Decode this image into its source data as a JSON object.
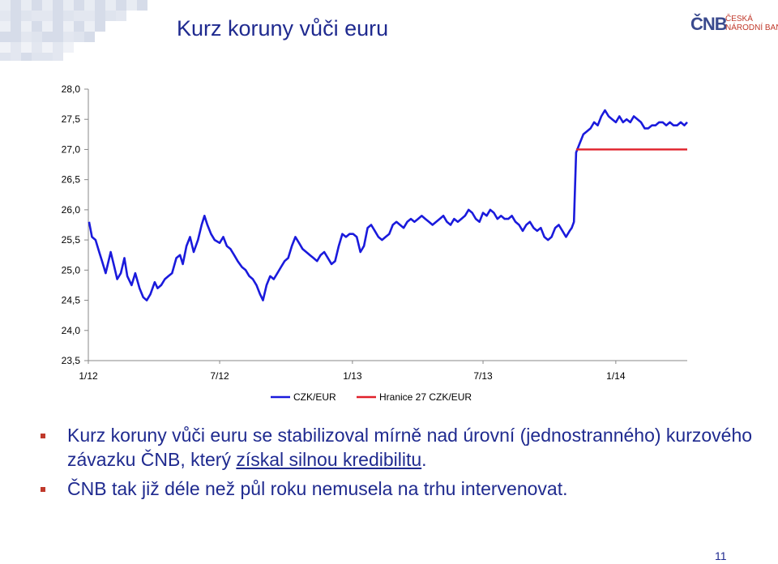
{
  "slide": {
    "title": "Kurz koruny vůči euru",
    "logo": {
      "mark": "ČNB",
      "line1": "ČESKÁ",
      "line2": "NÁRODNÍ BANKA"
    },
    "bullets": [
      {
        "before": "Kurz koruny vůči euru se stabilizoval mírně nad úrovní (jednostranného) kurzového závazku ČNB, který ",
        "underlined": "získal silnou kredibilitu",
        "after": "."
      },
      {
        "before": "ČNB tak již déle než půl roku nemusela na trhu intervenovat.",
        "underlined": "",
        "after": ""
      }
    ],
    "page_number": "11",
    "colors": {
      "title": "#1f2a8f",
      "bullet": "#c0392b",
      "series_czk": "#1a1adc",
      "series_limit": "#e0202a"
    }
  },
  "chart_data": {
    "type": "line",
    "title": "",
    "xlabel": "",
    "ylabel": "",
    "ylim": [
      23.5,
      28.0
    ],
    "yticks": [
      "28,0",
      "27,5",
      "27,0",
      "26,5",
      "26,0",
      "25,5",
      "25,0",
      "24,5",
      "24,0",
      "23,5"
    ],
    "ytick_values": [
      28.0,
      27.5,
      27.0,
      26.5,
      26.0,
      25.5,
      25.0,
      24.5,
      24.0,
      23.5
    ],
    "xticks": [
      "1/12",
      "7/12",
      "1/13",
      "7/13",
      "1/14"
    ],
    "xtick_values": [
      "2012-01",
      "2012-07",
      "2013-01",
      "2013-07",
      "2014-01"
    ],
    "x_range": [
      "2012-01",
      "2014-04"
    ],
    "grid": false,
    "legend_placement": "bottom-center",
    "series": [
      {
        "name": "CZK/EUR",
        "color": "#1a1adc",
        "points": [
          [
            "2012-01-02",
            25.8
          ],
          [
            "2012-01-06",
            25.55
          ],
          [
            "2012-01-11",
            25.5
          ],
          [
            "2012-01-16",
            25.3
          ],
          [
            "2012-01-20",
            25.15
          ],
          [
            "2012-01-25",
            24.95
          ],
          [
            "2012-02-01",
            25.3
          ],
          [
            "2012-02-06",
            25.05
          ],
          [
            "2012-02-10",
            24.85
          ],
          [
            "2012-02-15",
            24.95
          ],
          [
            "2012-02-20",
            25.2
          ],
          [
            "2012-02-24",
            24.9
          ],
          [
            "2012-03-01",
            24.75
          ],
          [
            "2012-03-06",
            24.95
          ],
          [
            "2012-03-12",
            24.7
          ],
          [
            "2012-03-17",
            24.55
          ],
          [
            "2012-03-22",
            24.5
          ],
          [
            "2012-03-27",
            24.6
          ],
          [
            "2012-04-02",
            24.8
          ],
          [
            "2012-04-06",
            24.7
          ],
          [
            "2012-04-11",
            24.75
          ],
          [
            "2012-04-16",
            24.85
          ],
          [
            "2012-04-21",
            24.9
          ],
          [
            "2012-04-26",
            24.95
          ],
          [
            "2012-05-02",
            25.2
          ],
          [
            "2012-05-07",
            25.25
          ],
          [
            "2012-05-11",
            25.1
          ],
          [
            "2012-05-16",
            25.4
          ],
          [
            "2012-05-21",
            25.55
          ],
          [
            "2012-05-26",
            25.3
          ],
          [
            "2012-06-01",
            25.5
          ],
          [
            "2012-06-06",
            25.75
          ],
          [
            "2012-06-10",
            25.9
          ],
          [
            "2012-06-14",
            25.75
          ],
          [
            "2012-06-19",
            25.6
          ],
          [
            "2012-06-24",
            25.5
          ],
          [
            "2012-07-01",
            25.45
          ],
          [
            "2012-07-06",
            25.55
          ],
          [
            "2012-07-11",
            25.4
          ],
          [
            "2012-07-16",
            25.35
          ],
          [
            "2012-07-21",
            25.25
          ],
          [
            "2012-07-26",
            25.15
          ],
          [
            "2012-08-01",
            25.05
          ],
          [
            "2012-08-06",
            25.0
          ],
          [
            "2012-08-11",
            24.9
          ],
          [
            "2012-08-16",
            24.85
          ],
          [
            "2012-08-21",
            24.75
          ],
          [
            "2012-08-26",
            24.6
          ],
          [
            "2012-08-30",
            24.5
          ],
          [
            "2012-09-04",
            24.75
          ],
          [
            "2012-09-09",
            24.9
          ],
          [
            "2012-09-14",
            24.85
          ],
          [
            "2012-09-19",
            24.95
          ],
          [
            "2012-09-24",
            25.05
          ],
          [
            "2012-09-29",
            25.15
          ],
          [
            "2012-10-04",
            25.2
          ],
          [
            "2012-10-09",
            25.4
          ],
          [
            "2012-10-14",
            25.55
          ],
          [
            "2012-10-19",
            25.45
          ],
          [
            "2012-10-24",
            25.35
          ],
          [
            "2012-10-29",
            25.3
          ],
          [
            "2012-11-03",
            25.25
          ],
          [
            "2012-11-08",
            25.2
          ],
          [
            "2012-11-13",
            25.15
          ],
          [
            "2012-11-18",
            25.25
          ],
          [
            "2012-11-23",
            25.3
          ],
          [
            "2012-11-28",
            25.2
          ],
          [
            "2012-12-03",
            25.1
          ],
          [
            "2012-12-08",
            25.15
          ],
          [
            "2012-12-13",
            25.4
          ],
          [
            "2012-12-18",
            25.6
          ],
          [
            "2012-12-23",
            25.55
          ],
          [
            "2012-12-28",
            25.6
          ],
          [
            "2013-01-02",
            25.6
          ],
          [
            "2013-01-07",
            25.55
          ],
          [
            "2013-01-12",
            25.3
          ],
          [
            "2013-01-17",
            25.4
          ],
          [
            "2013-01-22",
            25.7
          ],
          [
            "2013-01-27",
            25.75
          ],
          [
            "2013-02-01",
            25.65
          ],
          [
            "2013-02-06",
            25.55
          ],
          [
            "2013-02-11",
            25.5
          ],
          [
            "2013-02-16",
            25.55
          ],
          [
            "2013-02-21",
            25.6
          ],
          [
            "2013-02-26",
            25.75
          ],
          [
            "2013-03-03",
            25.8
          ],
          [
            "2013-03-08",
            25.75
          ],
          [
            "2013-03-13",
            25.7
          ],
          [
            "2013-03-18",
            25.8
          ],
          [
            "2013-03-23",
            25.85
          ],
          [
            "2013-03-28",
            25.8
          ],
          [
            "2013-04-02",
            25.85
          ],
          [
            "2013-04-07",
            25.9
          ],
          [
            "2013-04-12",
            25.85
          ],
          [
            "2013-04-17",
            25.8
          ],
          [
            "2013-04-22",
            25.75
          ],
          [
            "2013-04-27",
            25.8
          ],
          [
            "2013-05-02",
            25.85
          ],
          [
            "2013-05-07",
            25.9
          ],
          [
            "2013-05-12",
            25.8
          ],
          [
            "2013-05-17",
            25.75
          ],
          [
            "2013-05-22",
            25.85
          ],
          [
            "2013-05-27",
            25.8
          ],
          [
            "2013-06-01",
            25.85
          ],
          [
            "2013-06-06",
            25.9
          ],
          [
            "2013-06-11",
            26.0
          ],
          [
            "2013-06-16",
            25.95
          ],
          [
            "2013-06-21",
            25.85
          ],
          [
            "2013-06-26",
            25.8
          ],
          [
            "2013-07-01",
            25.95
          ],
          [
            "2013-07-06",
            25.9
          ],
          [
            "2013-07-11",
            26.0
          ],
          [
            "2013-07-16",
            25.95
          ],
          [
            "2013-07-21",
            25.85
          ],
          [
            "2013-07-26",
            25.9
          ],
          [
            "2013-07-31",
            25.85
          ],
          [
            "2013-08-05",
            25.85
          ],
          [
            "2013-08-10",
            25.9
          ],
          [
            "2013-08-15",
            25.8
          ],
          [
            "2013-08-20",
            25.75
          ],
          [
            "2013-08-25",
            25.65
          ],
          [
            "2013-08-30",
            25.75
          ],
          [
            "2013-09-04",
            25.8
          ],
          [
            "2013-09-09",
            25.7
          ],
          [
            "2013-09-14",
            25.65
          ],
          [
            "2013-09-19",
            25.7
          ],
          [
            "2013-09-24",
            25.55
          ],
          [
            "2013-09-29",
            25.5
          ],
          [
            "2013-10-04",
            25.55
          ],
          [
            "2013-10-09",
            25.7
          ],
          [
            "2013-10-14",
            25.75
          ],
          [
            "2013-10-19",
            25.65
          ],
          [
            "2013-10-24",
            25.55
          ],
          [
            "2013-10-29",
            25.65
          ],
          [
            "2013-11-01",
            25.7
          ],
          [
            "2013-11-04",
            25.8
          ],
          [
            "2013-11-07",
            26.95
          ],
          [
            "2013-11-12",
            27.1
          ],
          [
            "2013-11-17",
            27.25
          ],
          [
            "2013-11-22",
            27.3
          ],
          [
            "2013-11-27",
            27.35
          ],
          [
            "2013-12-02",
            27.45
          ],
          [
            "2013-12-07",
            27.4
          ],
          [
            "2013-12-12",
            27.55
          ],
          [
            "2013-12-17",
            27.65
          ],
          [
            "2013-12-22",
            27.55
          ],
          [
            "2013-12-27",
            27.5
          ],
          [
            "2014-01-01",
            27.45
          ],
          [
            "2014-01-06",
            27.55
          ],
          [
            "2014-01-11",
            27.45
          ],
          [
            "2014-01-16",
            27.5
          ],
          [
            "2014-01-21",
            27.45
          ],
          [
            "2014-01-26",
            27.55
          ],
          [
            "2014-01-31",
            27.5
          ],
          [
            "2014-02-05",
            27.45
          ],
          [
            "2014-02-10",
            27.35
          ],
          [
            "2014-02-15",
            27.35
          ],
          [
            "2014-02-20",
            27.4
          ],
          [
            "2014-02-25",
            27.4
          ],
          [
            "2014-03-02",
            27.45
          ],
          [
            "2014-03-07",
            27.45
          ],
          [
            "2014-03-12",
            27.4
          ],
          [
            "2014-03-17",
            27.45
          ],
          [
            "2014-03-22",
            27.4
          ],
          [
            "2014-03-27",
            27.4
          ],
          [
            "2014-04-01",
            27.45
          ],
          [
            "2014-04-06",
            27.4
          ],
          [
            "2014-04-10",
            27.45
          ]
        ]
      },
      {
        "name": "Hranice 27 CZK/EUR",
        "color": "#e0202a",
        "points": [
          [
            "2013-11-07",
            27.0
          ],
          [
            "2014-04-10",
            27.0
          ]
        ]
      }
    ]
  }
}
